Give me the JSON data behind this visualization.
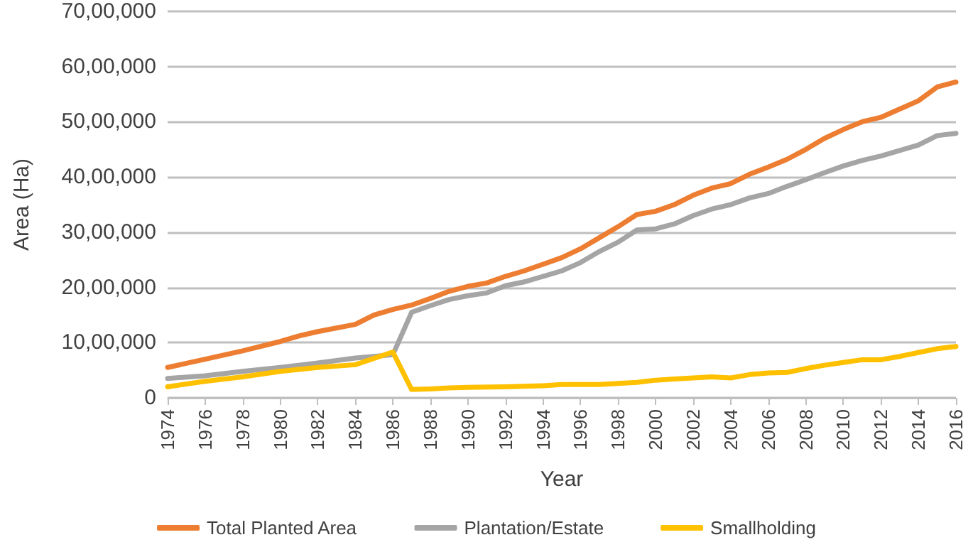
{
  "chart_data": {
    "type": "line",
    "xlabel": "Year",
    "ylabel": "Area (Ha)",
    "xlim": [
      1974,
      2016
    ],
    "xticks": [
      1974,
      1976,
      1978,
      1980,
      1982,
      1984,
      1986,
      1988,
      1990,
      1992,
      1994,
      1996,
      1998,
      2000,
      2002,
      2004,
      2006,
      2008,
      2010,
      2012,
      2014,
      2016
    ],
    "ylim": [
      0,
      7000000
    ],
    "yticks": [
      {
        "value": 0,
        "label": "0"
      },
      {
        "value": 1000000,
        "label": "10,00,000"
      },
      {
        "value": 2000000,
        "label": "20,00,000"
      },
      {
        "value": 3000000,
        "label": "30,00,000"
      },
      {
        "value": 4000000,
        "label": "40,00,000"
      },
      {
        "value": 5000000,
        "label": "50,00,000"
      },
      {
        "value": 6000000,
        "label": "60,00,000"
      },
      {
        "value": 7000000,
        "label": "70,00,000"
      }
    ],
    "grid": "y",
    "legend": "bottom",
    "marker": "none",
    "line_style": "solid",
    "series": [
      {
        "name": "Total Planted Area",
        "color": "#ed7d31",
        "x": [
          1974,
          1976,
          1978,
          1980,
          1981,
          1982,
          1984,
          1985,
          1986,
          1987,
          1988,
          1989,
          1990,
          1991,
          1992,
          1993,
          1994,
          1995,
          1996,
          1997,
          1998,
          1999,
          2000,
          2001,
          2002,
          2003,
          2004,
          2005,
          2006,
          2007,
          2008,
          2009,
          2010,
          2011,
          2012,
          2013,
          2014,
          2015,
          2016
        ],
        "values": [
          550000,
          700000,
          850000,
          1020000,
          1120000,
          1200000,
          1330000,
          1500000,
          1600000,
          1680000,
          1800000,
          1930000,
          2020000,
          2080000,
          2200000,
          2300000,
          2420000,
          2540000,
          2700000,
          2900000,
          3100000,
          3320000,
          3380000,
          3500000,
          3670000,
          3800000,
          3880000,
          4050000,
          4180000,
          4320000,
          4500000,
          4700000,
          4860000,
          5000000,
          5080000,
          5230000,
          5380000,
          5630000,
          5720000
        ]
      },
      {
        "name": "Plantation/Estate",
        "color": "#a5a5a5",
        "x": [
          1974,
          1976,
          1978,
          1980,
          1982,
          1984,
          1986,
          1987,
          1988,
          1989,
          1990,
          1991,
          1992,
          1993,
          1994,
          1995,
          1996,
          1997,
          1998,
          1999,
          2000,
          2001,
          2002,
          2003,
          2004,
          2005,
          2006,
          2007,
          2008,
          2009,
          2010,
          2011,
          2012,
          2013,
          2014,
          2015,
          2016
        ],
        "values": [
          350000,
          400000,
          480000,
          550000,
          630000,
          720000,
          780000,
          1550000,
          1670000,
          1780000,
          1850000,
          1900000,
          2030000,
          2100000,
          2200000,
          2300000,
          2450000,
          2650000,
          2820000,
          3040000,
          3060000,
          3150000,
          3300000,
          3420000,
          3500000,
          3620000,
          3700000,
          3830000,
          3950000,
          4080000,
          4200000,
          4300000,
          4380000,
          4480000,
          4580000,
          4750000,
          4790000
        ]
      },
      {
        "name": "Smallholding",
        "color": "#ffc000",
        "x": [
          1974,
          1976,
          1978,
          1980,
          1982,
          1984,
          1986,
          1987,
          1988,
          1989,
          1990,
          1992,
          1994,
          1995,
          1996,
          1997,
          1998,
          1999,
          2000,
          2001,
          2002,
          2003,
          2004,
          2005,
          2006,
          2007,
          2008,
          2009,
          2010,
          2011,
          2012,
          2013,
          2014,
          2015,
          2016
        ],
        "values": [
          200000,
          300000,
          380000,
          480000,
          550000,
          600000,
          830000,
          150000,
          160000,
          180000,
          190000,
          200000,
          220000,
          240000,
          240000,
          240000,
          260000,
          280000,
          320000,
          340000,
          360000,
          380000,
          360000,
          420000,
          450000,
          460000,
          530000,
          590000,
          640000,
          690000,
          690000,
          750000,
          820000,
          890000,
          930000
        ]
      }
    ]
  }
}
